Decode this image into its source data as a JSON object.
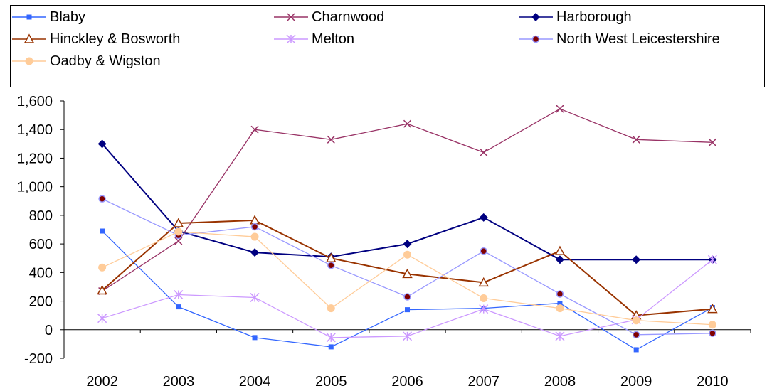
{
  "chart_data": {
    "type": "line",
    "categories": [
      "2002",
      "2003",
      "2004",
      "2005",
      "2006",
      "2007",
      "2008",
      "2009",
      "2010"
    ],
    "ylim": [
      -200,
      1600
    ],
    "yticks": [
      -200,
      0,
      200,
      400,
      600,
      800,
      1000,
      1200,
      1400,
      1600
    ],
    "ytick_labels": [
      "-200",
      "0",
      "200",
      "400",
      "600",
      "800",
      "1,000",
      "1,200",
      "1,400",
      "1,600"
    ],
    "grid": false,
    "legend_position": "top",
    "series": [
      {
        "name": "Blaby",
        "color": "#3366ff",
        "marker": "square",
        "values": [
          690,
          160,
          -55,
          -120,
          140,
          150,
          185,
          -140,
          155
        ]
      },
      {
        "name": "Charnwood",
        "color": "#993366",
        "marker": "x",
        "values": [
          270,
          620,
          1400,
          1330,
          1440,
          1240,
          1545,
          1330,
          1310
        ]
      },
      {
        "name": "Harborough",
        "color": "#000080",
        "marker": "diamond",
        "values": [
          1300,
          690,
          540,
          510,
          600,
          785,
          490,
          490,
          490
        ]
      },
      {
        "name": "Hinckley & Bosworth",
        "color": "#993300",
        "marker": "triangle",
        "values": [
          275,
          745,
          765,
          500,
          390,
          330,
          550,
          100,
          145
        ]
      },
      {
        "name": "Melton",
        "color": "#cc99ff",
        "marker": "star",
        "values": [
          80,
          245,
          225,
          -55,
          -45,
          145,
          -45,
          70,
          490
        ]
      },
      {
        "name": "North West Leicestershire",
        "color": "#9999ff",
        "marker": "circle-dark",
        "values": [
          915,
          660,
          720,
          450,
          230,
          550,
          250,
          -35,
          -25
        ]
      },
      {
        "name": "Oadby & Wigston",
        "color": "#ffcc99",
        "marker": "circle",
        "values": [
          435,
          685,
          650,
          150,
          525,
          220,
          150,
          65,
          35
        ]
      }
    ]
  }
}
